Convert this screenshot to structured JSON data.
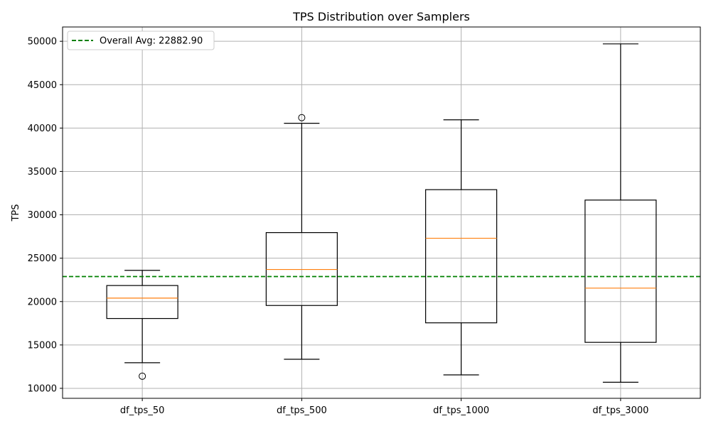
{
  "chart_data": {
    "type": "box",
    "title": "TPS Distribution over Samplers",
    "xlabel": "",
    "ylabel": "TPS",
    "ylim": [
      8850,
      51650
    ],
    "yticks": [
      10000,
      15000,
      20000,
      25000,
      30000,
      35000,
      40000,
      45000,
      50000
    ],
    "grid": true,
    "legend_position": "top-left",
    "categories": [
      "df_tps_50",
      "df_tps_500",
      "df_tps_1000",
      "df_tps_3000"
    ],
    "boxes": [
      {
        "whisker_low": 12950,
        "q1": 18050,
        "median": 20400,
        "q3": 21850,
        "whisker_high": 23600,
        "outliers": [
          11400
        ]
      },
      {
        "whisker_low": 13350,
        "q1": 19550,
        "median": 23700,
        "q3": 27950,
        "whisker_high": 40550,
        "outliers": [
          41200
        ]
      },
      {
        "whisker_low": 11550,
        "q1": 17550,
        "median": 27300,
        "q3": 32900,
        "whisker_high": 40950,
        "outliers": []
      },
      {
        "whisker_low": 10700,
        "q1": 15300,
        "median": 21550,
        "q3": 31700,
        "whisker_high": 49700,
        "outliers": []
      }
    ],
    "reference_line": {
      "value": 22882.9,
      "label": "Overall Avg: 22882.90",
      "color": "#008000",
      "style": "dashed"
    },
    "colors": {
      "box": "#000000",
      "median": "#ff7f0e",
      "grid": "#b0b0b0"
    }
  }
}
